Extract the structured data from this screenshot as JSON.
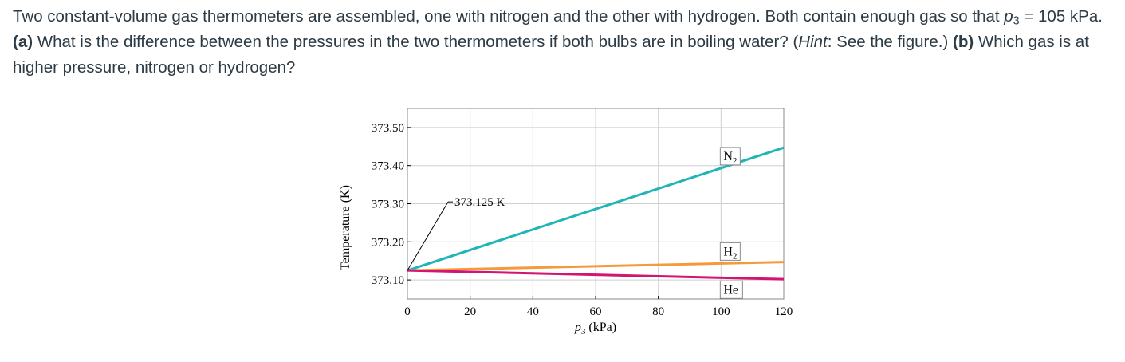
{
  "question": {
    "p1": "Two constant-volume gas thermometers are assembled, one with nitrogen and the other with hydrogen. Both contain enough gas so that ",
    "p_symbol": "p",
    "p_sub": "3",
    "p2": " = 105 kPa. ",
    "part_a_label": "(a)",
    "part_a_text": " What is the difference between the pressures in the two thermometers if both bulbs are in boiling water? (",
    "hint_label": "Hint",
    "hint_text": ": See the figure.) ",
    "part_b_label": "(b)",
    "part_b_text": " Which gas is at higher pressure, nitrogen or hydrogen?"
  },
  "chart_data": {
    "type": "line",
    "xlabel": "p",
    "xlabel_sub": "3",
    "xlabel_unit": "(kPa)",
    "ylabel": "Temperature (K)",
    "xlim": [
      0,
      120
    ],
    "ylim": [
      373.05,
      373.55
    ],
    "xticks": [
      0,
      20,
      40,
      60,
      80,
      100,
      120
    ],
    "xtick_labels": [
      "0",
      "20",
      "40",
      "60",
      "80",
      "100",
      "120"
    ],
    "yticks": [
      373.1,
      373.2,
      373.3,
      373.4,
      373.5
    ],
    "ytick_labels": [
      "373.10",
      "373.20",
      "373.30",
      "373.40",
      "373.50"
    ],
    "grid": true,
    "annotation": {
      "text": "373.125 K",
      "x": 0,
      "y": 373.125
    },
    "series": [
      {
        "name": "N",
        "name_sub": "2",
        "x": [
          0,
          120
        ],
        "y": [
          373.125,
          373.447
        ],
        "color": "#1fb5b8"
      },
      {
        "name": "H",
        "name_sub": "2",
        "x": [
          0,
          120
        ],
        "y": [
          373.125,
          373.147
        ],
        "color": "#f59a3c"
      },
      {
        "name": "He",
        "name_sub": "",
        "x": [
          0,
          120
        ],
        "y": [
          373.125,
          373.102
        ],
        "color": "#d31470"
      }
    ]
  }
}
